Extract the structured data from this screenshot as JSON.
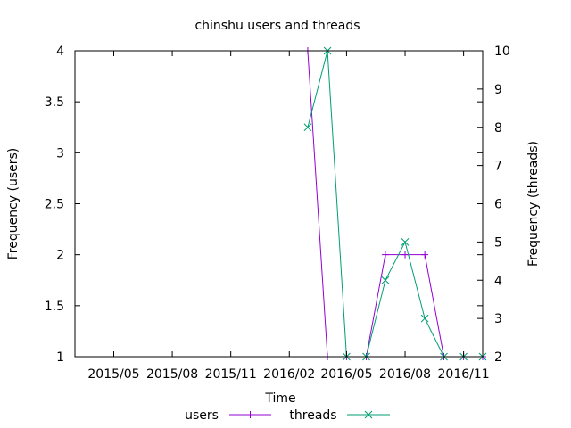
{
  "chart_data": {
    "type": "line",
    "title": "chinshu users and threads",
    "xlabel": "Time",
    "ylabel": "Frequency (users)",
    "y2label": "Frequency (threads)",
    "x_ticks": [
      "2015/05",
      "2015/08",
      "2015/11",
      "2016/02",
      "2016/05",
      "2016/08",
      "2016/11"
    ],
    "x_tick_dates": [
      "2015-05-01",
      "2015-08-01",
      "2015-11-01",
      "2016-02-01",
      "2016-05-01",
      "2016-08-01",
      "2016-11-01"
    ],
    "xlim": [
      "2015-03-01",
      "2016-12-01"
    ],
    "ylim": [
      1,
      4
    ],
    "y2lim": [
      2,
      10
    ],
    "y_ticks": [
      "1",
      "1.5",
      "2",
      "2.5",
      "3",
      "3.5",
      "4"
    ],
    "y2_ticks": [
      "2",
      "3",
      "4",
      "5",
      "6",
      "7",
      "8",
      "9",
      "10"
    ],
    "legend_position": "bottom-center",
    "series": [
      {
        "name": "users",
        "axis": "left",
        "color": "#9400d3",
        "marker": "plus",
        "x": [
          "2016-03-01",
          "2016-04-01",
          "2016-05-01",
          "2016-06-01",
          "2016-07-01",
          "2016-08-01",
          "2016-09-01",
          "2016-10-01",
          "2016-11-01",
          "2016-12-01"
        ],
        "y": [
          4,
          1,
          1,
          1,
          2,
          2,
          2,
          1,
          1,
          1
        ]
      },
      {
        "name": "threads",
        "axis": "right",
        "color": "#009e73",
        "marker": "cross",
        "x": [
          "2016-03-01",
          "2016-04-01",
          "2016-05-01",
          "2016-06-01",
          "2016-07-01",
          "2016-08-01",
          "2016-09-01",
          "2016-10-01",
          "2016-11-01",
          "2016-12-01"
        ],
        "y": [
          8,
          10,
          2,
          2,
          4,
          5,
          3,
          2,
          2,
          2
        ]
      }
    ]
  }
}
